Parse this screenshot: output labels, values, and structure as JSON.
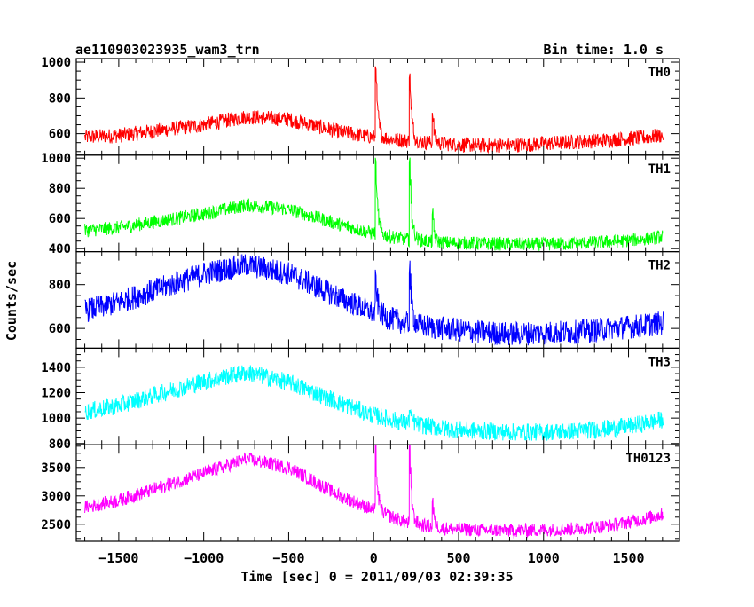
{
  "header": {
    "obs_id": "ae110903023935_wam3_trn",
    "bin_time": "Bin time: 1.0 s"
  },
  "chart_data": {
    "type": "line",
    "title": "ae110903023935_wam3_trn",
    "xlabel": "Time [sec] 0 = 2011/09/03 02:39:35",
    "ylabel": "Counts/sec",
    "xlim": [
      -1750,
      1800
    ],
    "x_ticks": [
      -1500,
      -1000,
      -500,
      0,
      500,
      1000,
      1500
    ],
    "x_tick_labels": [
      "−1500",
      "−1000",
      "−500",
      "0",
      "500",
      "1000",
      "1500"
    ],
    "x_range": [
      -1700,
      1700
    ],
    "x_step": 5,
    "panels": [
      {
        "name": "TH0",
        "color": "#ff0000",
        "ylim": [
          480,
          1020
        ],
        "yticks": [
          600,
          800,
          1000
        ],
        "ytick_labels": [
          "600",
          "800",
          "1000"
        ],
        "baseline": {
          "x": [
            -1700,
            -1500,
            -1000,
            -750,
            -500,
            -200,
            0,
            200,
            400,
            600,
            800,
            1000,
            1200,
            1400,
            1600,
            1700
          ],
          "y": [
            580,
            590,
            650,
            695,
            680,
            610,
            580,
            560,
            545,
            535,
            535,
            545,
            555,
            565,
            580,
            590
          ]
        },
        "noise": 42,
        "peaks": [
          {
            "x": 10,
            "y": 1000,
            "w": 12
          },
          {
            "x": 210,
            "y": 950,
            "w": 12
          },
          {
            "x": 345,
            "y": 720,
            "w": 10
          }
        ]
      },
      {
        "name": "TH1",
        "color": "#00ff00",
        "ylim": [
          380,
          1020
        ],
        "yticks": [
          400,
          600,
          800,
          1000
        ],
        "ytick_labels": [
          "400",
          "600",
          "800",
          "1000"
        ],
        "baseline": {
          "x": [
            -1700,
            -1500,
            -1000,
            -750,
            -500,
            -200,
            0,
            200,
            400,
            600,
            800,
            1000,
            1200,
            1400,
            1600,
            1700
          ],
          "y": [
            520,
            540,
            630,
            690,
            660,
            560,
            500,
            460,
            440,
            435,
            430,
            430,
            435,
            445,
            465,
            480
          ]
        },
        "noise": 45,
        "peaks": [
          {
            "x": 10,
            "y": 970,
            "w": 12
          },
          {
            "x": 210,
            "y": 1000,
            "w": 12
          },
          {
            "x": 345,
            "y": 630,
            "w": 10
          }
        ]
      },
      {
        "name": "TH2",
        "color": "#0000ff",
        "ylim": [
          510,
          950
        ],
        "yticks": [
          600,
          800
        ],
        "ytick_labels": [
          "600",
          "800"
        ],
        "baseline": {
          "x": [
            -1700,
            -1500,
            -1000,
            -750,
            -500,
            -200,
            0,
            200,
            400,
            600,
            800,
            1000,
            1200,
            1400,
            1600,
            1700
          ],
          "y": [
            680,
            720,
            850,
            890,
            850,
            740,
            670,
            620,
            600,
            585,
            575,
            580,
            585,
            600,
            615,
            625
          ]
        },
        "noise": 55,
        "peaks": [
          {
            "x": 10,
            "y": 820,
            "w": 12
          },
          {
            "x": 210,
            "y": 900,
            "w": 12
          }
        ]
      },
      {
        "name": "TH3",
        "color": "#00ffff",
        "ylim": [
          790,
          1550
        ],
        "yticks": [
          800,
          1000,
          1200,
          1400
        ],
        "ytick_labels": [
          "800",
          "1000",
          "1200",
          "1400"
        ],
        "baseline": {
          "x": [
            -1700,
            -1500,
            -1000,
            -750,
            -500,
            -200,
            0,
            200,
            400,
            600,
            800,
            1000,
            1200,
            1400,
            1600,
            1700
          ],
          "y": [
            1050,
            1100,
            1290,
            1360,
            1280,
            1120,
            1020,
            960,
            920,
            900,
            890,
            890,
            900,
            920,
            960,
            990
          ]
        },
        "noise": 70,
        "peaks": [
          {
            "x": 210,
            "y": 1060,
            "w": 14
          }
        ]
      },
      {
        "name": "TH0123",
        "color": "#ff00ff",
        "ylim": [
          2200,
          3900
        ],
        "yticks": [
          2500,
          3000,
          3500
        ],
        "ytick_labels": [
          "2500",
          "3000",
          "3500"
        ],
        "baseline": {
          "x": [
            -1700,
            -1500,
            -1000,
            -750,
            -500,
            -200,
            0,
            200,
            400,
            600,
            800,
            1000,
            1200,
            1400,
            1600,
            1700
          ],
          "y": [
            2800,
            2920,
            3400,
            3650,
            3500,
            3000,
            2750,
            2520,
            2430,
            2400,
            2390,
            2400,
            2420,
            2480,
            2600,
            2680
          ]
        },
        "noise": 120,
        "peaks": [
          {
            "x": 10,
            "y": 3800,
            "w": 12
          },
          {
            "x": 210,
            "y": 3850,
            "w": 12
          },
          {
            "x": 345,
            "y": 2900,
            "w": 10
          }
        ]
      }
    ]
  }
}
